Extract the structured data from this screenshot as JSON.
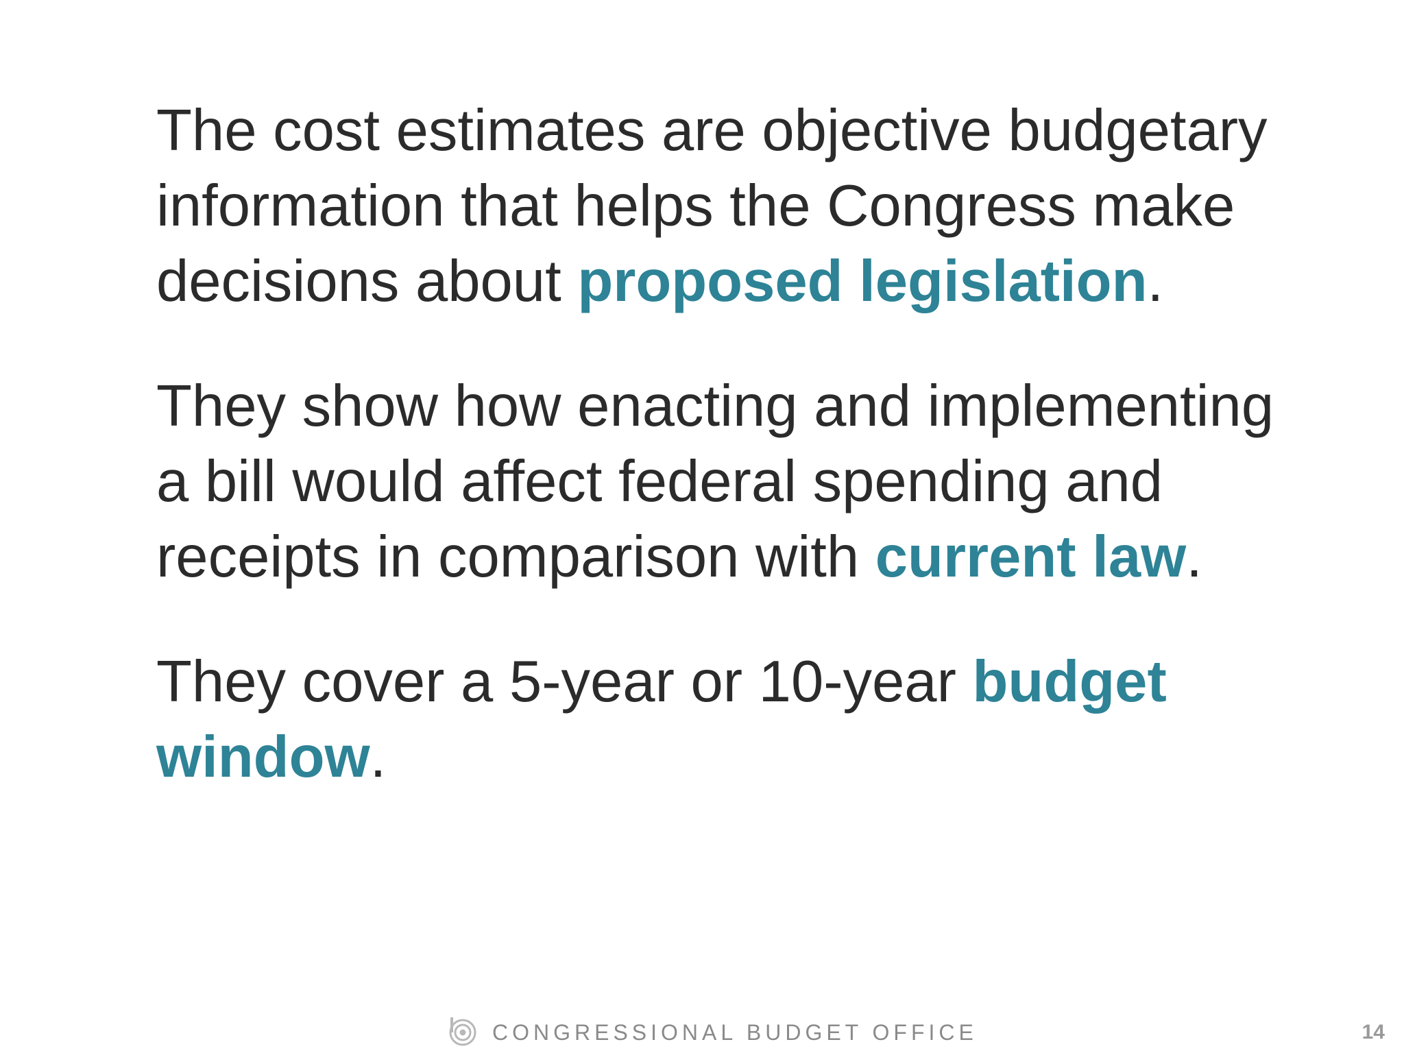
{
  "paragraphs": [
    {
      "text_before": "The cost estimates are objective budgetary information that helps the Congress make decisions about ",
      "highlight": "proposed legislation",
      "text_after": "."
    },
    {
      "text_before": "They show how enacting and implementing a bill would affect federal spending and receipts in comparison with ",
      "highlight": "current law",
      "text_after": "."
    },
    {
      "text_before": "They cover a 5-year or 10-year ",
      "highlight": "budget window",
      "text_after": "."
    }
  ],
  "footer": {
    "organization": "CONGRESSIONAL BUDGET OFFICE",
    "logo_icon": "cbo-logo-icon",
    "page_number": "14"
  },
  "colors": {
    "body_text": "#2b2b2b",
    "highlight": "#2e8396",
    "footer_text": "#8a8a8a"
  }
}
